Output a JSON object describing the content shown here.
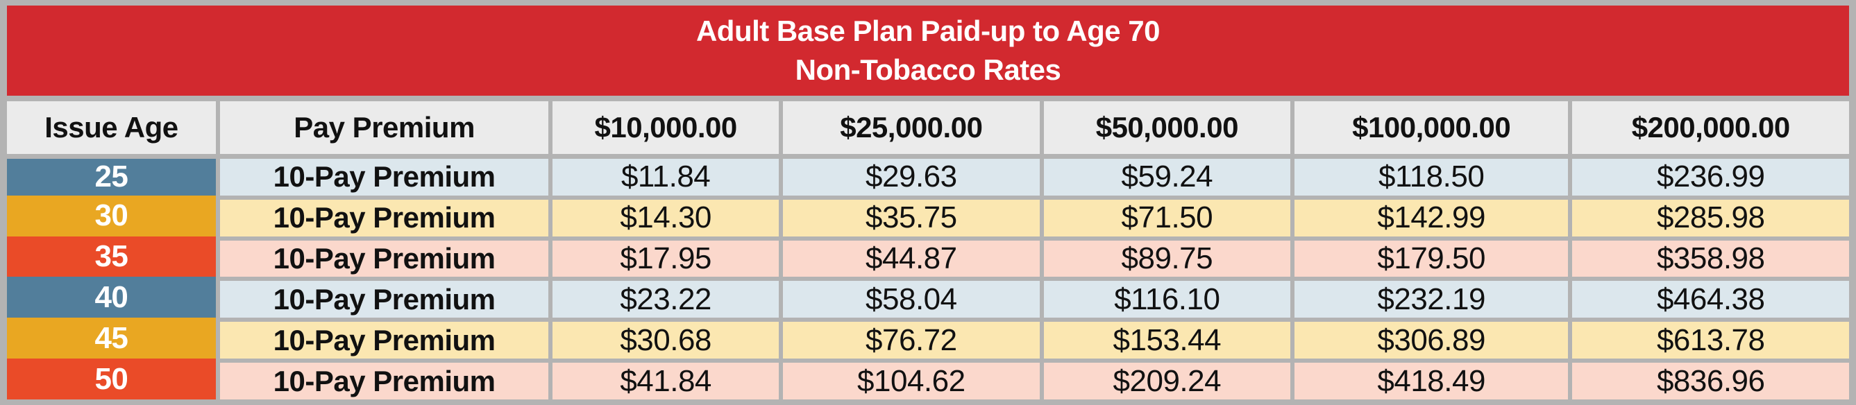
{
  "chart_data": {
    "type": "table",
    "title": "Adult Base Plan Paid-up to Age 70",
    "subtitle": "Non-Tobacco Rates",
    "columns": [
      "Issue Age",
      "Pay Premium",
      "$10,000.00",
      "$25,000.00",
      "$50,000.00",
      "$100,000.00",
      "$200,000.00"
    ],
    "rows": [
      {
        "age": "25",
        "premium_type": "10-Pay Premium",
        "theme": "blue",
        "values": [
          "$11.84",
          "$29.63",
          "$59.24",
          "$118.50",
          "$236.99"
        ]
      },
      {
        "age": "30",
        "premium_type": "10-Pay Premium",
        "theme": "amber",
        "values": [
          "$14.30",
          "$35.75",
          "$71.50",
          "$142.99",
          "$285.98"
        ]
      },
      {
        "age": "35",
        "premium_type": "10-Pay Premium",
        "theme": "red",
        "values": [
          "$17.95",
          "$44.87",
          "$89.75",
          "$179.50",
          "$358.98"
        ]
      },
      {
        "age": "40",
        "premium_type": "10-Pay Premium",
        "theme": "blue",
        "values": [
          "$23.22",
          "$58.04",
          "$116.10",
          "$232.19",
          "$464.38"
        ]
      },
      {
        "age": "45",
        "premium_type": "10-Pay Premium",
        "theme": "amber",
        "values": [
          "$30.68",
          "$76.72",
          "$153.44",
          "$306.89",
          "$613.78"
        ]
      },
      {
        "age": "50",
        "premium_type": "10-Pay Premium",
        "theme": "red",
        "values": [
          "$41.84",
          "$104.62",
          "$209.24",
          "$418.49",
          "$836.96"
        ]
      }
    ]
  },
  "colors": {
    "frame-gray": "#b3b3b3",
    "band-red": "#d2292f",
    "header-gray": "#ebebeb",
    "age-blue": "#527e9b",
    "age-amber": "#e9a722",
    "age-red": "#ea4b28",
    "row-blue": "#dce7ed",
    "row-yellow": "#fbe7b1",
    "row-pink": "#fbd8cc",
    "text-black": "#111111",
    "text-white": "#ffffff"
  }
}
